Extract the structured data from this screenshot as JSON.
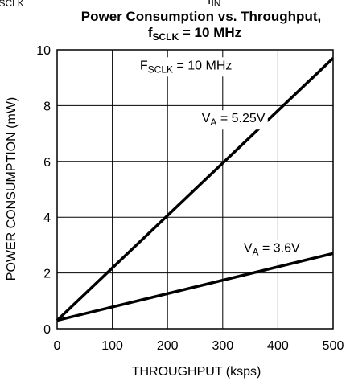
{
  "chart_data": {
    "type": "line",
    "top_fragment": {
      "left": {
        "main": "f",
        "sub": "SCLK"
      },
      "right": {
        "main": "f",
        "sub": "IN"
      }
    },
    "title": {
      "line1": "Power Consumption vs. Throughput,",
      "line2_main": "f",
      "line2_sub": "SCLK",
      "line2_rest": " = 10 MHz"
    },
    "xlabel": "THROUGHPUT (ksps)",
    "ylabel": "POWER CONSUMPTION (mW)",
    "xlim": [
      0,
      500
    ],
    "ylim": [
      0,
      10
    ],
    "xticks": [
      0,
      100,
      200,
      300,
      400,
      500
    ],
    "yticks": [
      0,
      2,
      4,
      6,
      8,
      10
    ],
    "grid": true,
    "series": [
      {
        "name": "VA = 5.25V",
        "x": [
          0,
          500
        ],
        "y": [
          0.3,
          9.7
        ],
        "color": "#000000"
      },
      {
        "name": "VA = 3.6V",
        "x": [
          0,
          500
        ],
        "y": [
          0.3,
          2.7
        ],
        "color": "#000000"
      }
    ],
    "annotations": [
      {
        "id": "fsclk",
        "main": "F",
        "sub": "SCLK",
        "rest": " = 10 MHz",
        "x": 150,
        "y": 9.3
      },
      {
        "id": "va525",
        "main": "V",
        "sub": "A",
        "rest": " = 5.25V",
        "x": 262,
        "y": 7.4
      },
      {
        "id": "va36",
        "main": "V",
        "sub": "A",
        "rest": " = 3.6V",
        "x": 338,
        "y": 2.75
      }
    ]
  }
}
